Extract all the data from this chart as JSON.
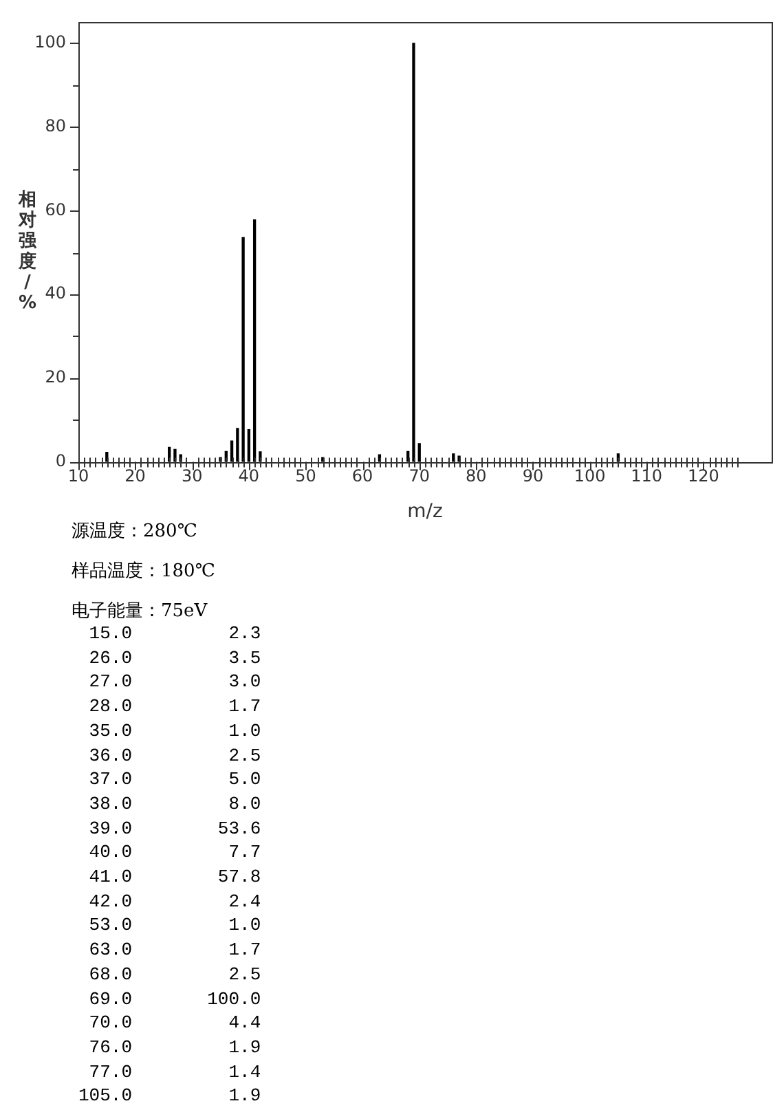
{
  "chart_data": {
    "type": "bar",
    "xlabel": "m/z",
    "ylabel": "相对强度/%",
    "x": [
      15,
      26,
      27,
      28,
      35,
      36,
      37,
      38,
      39,
      40,
      41,
      42,
      53,
      63,
      68,
      69,
      70,
      76,
      77,
      105
    ],
    "values": [
      2.3,
      3.5,
      3.0,
      1.7,
      1.0,
      2.5,
      5.0,
      8.0,
      53.6,
      7.7,
      57.8,
      2.4,
      1.0,
      1.7,
      2.5,
      100.0,
      4.4,
      1.9,
      1.4,
      1.9
    ],
    "color": "#000000",
    "xlim": [
      10,
      132
    ],
    "xticks": [
      10,
      {
        "value": 11,
        "label": null
      },
      {
        "value": 12,
        "label": null
      },
      {
        "value": 13,
        "label": null
      },
      {
        "value": 14,
        "label": null
      },
      {
        "value": 15,
        "label": null
      },
      {
        "value": 16,
        "label": null
      },
      {
        "value": 17,
        "label": null
      },
      {
        "value": 18,
        "label": null
      },
      {
        "value": 19,
        "label": null
      },
      20,
      {
        "value": 21,
        "label": null
      },
      {
        "value": 22,
        "label": null
      },
      {
        "value": 23,
        "label": null
      },
      {
        "value": 24,
        "label": null
      },
      {
        "value": 25,
        "label": null
      },
      {
        "value": 26,
        "label": null
      },
      {
        "value": 27,
        "label": null
      },
      {
        "value": 28,
        "label": null
      },
      {
        "value": 29,
        "label": null
      },
      30,
      {
        "value": 31,
        "label": null
      },
      {
        "value": 32,
        "label": null
      },
      {
        "value": 33,
        "label": null
      },
      {
        "value": 34,
        "label": null
      },
      {
        "value": 35,
        "label": null
      },
      {
        "value": 36,
        "label": null
      },
      {
        "value": 37,
        "label": null
      },
      {
        "value": 38,
        "label": null
      },
      {
        "value": 39,
        "label": null
      },
      40,
      {
        "value": 41,
        "label": null
      },
      {
        "value": 42,
        "label": null
      },
      {
        "value": 43,
        "label": null
      },
      {
        "value": 44,
        "label": null
      },
      {
        "value": 45,
        "label": null
      },
      {
        "value": 46,
        "label": null
      },
      {
        "value": 47,
        "label": null
      },
      {
        "value": 48,
        "label": null
      },
      {
        "value": 49,
        "label": null
      },
      50,
      {
        "value": 51,
        "label": null
      },
      {
        "value": 52,
        "label": null
      },
      {
        "value": 53,
        "label": null
      },
      {
        "value": 54,
        "label": null
      },
      {
        "value": 55,
        "label": null
      },
      {
        "value": 56,
        "label": null
      },
      {
        "value": 57,
        "label": null
      },
      {
        "value": 58,
        "label": null
      },
      {
        "value": 59,
        "label": null
      },
      60,
      {
        "value": 61,
        "label": null
      },
      {
        "value": 62,
        "label": null
      },
      {
        "value": 63,
        "label": null
      },
      {
        "value": 64,
        "label": null
      },
      {
        "value": 65,
        "label": null
      },
      {
        "value": 66,
        "label": null
      },
      {
        "value": 67,
        "label": null
      },
      {
        "value": 68,
        "label": null
      },
      {
        "value": 69,
        "label": null
      },
      70,
      {
        "value": 71,
        "label": null
      },
      {
        "value": 72,
        "label": null
      },
      {
        "value": 73,
        "label": null
      },
      {
        "value": 74,
        "label": null
      },
      {
        "value": 75,
        "label": null
      },
      {
        "value": 76,
        "label": null
      },
      {
        "value": 77,
        "label": null
      },
      {
        "value": 78,
        "label": null
      },
      {
        "value": 79,
        "label": null
      },
      80,
      {
        "value": 81,
        "label": null
      },
      {
        "value": 82,
        "label": null
      },
      {
        "value": 83,
        "label": null
      },
      {
        "value": 84,
        "label": null
      },
      {
        "value": 85,
        "label": null
      },
      {
        "value": 86,
        "label": null
      },
      {
        "value": 87,
        "label": null
      },
      {
        "value": 88,
        "label": null
      },
      {
        "value": 89,
        "label": null
      },
      90,
      {
        "value": 91,
        "label": null
      },
      {
        "value": 92,
        "label": null
      },
      {
        "value": 93,
        "label": null
      },
      {
        "value": 94,
        "label": null
      },
      {
        "value": 95,
        "label": null
      },
      {
        "value": 96,
        "label": null
      },
      {
        "value": 97,
        "label": null
      },
      {
        "value": 98,
        "label": null
      },
      {
        "value": 99,
        "label": null
      },
      100,
      {
        "value": 101,
        "label": null
      },
      {
        "value": 102,
        "label": null
      },
      {
        "value": 103,
        "label": null
      },
      {
        "value": 104,
        "label": null
      },
      {
        "value": 105,
        "label": null
      },
      {
        "value": 106,
        "label": null
      },
      {
        "value": 107,
        "label": null
      },
      {
        "value": 108,
        "label": null
      },
      {
        "value": 109,
        "label": null
      },
      110,
      {
        "value": 111,
        "label": null
      },
      {
        "value": 112,
        "label": null
      },
      {
        "value": 113,
        "label": null
      },
      {
        "value": 114,
        "label": null
      },
      {
        "value": 115,
        "label": null
      },
      {
        "value": 116,
        "label": null
      },
      {
        "value": 117,
        "label": null
      },
      {
        "value": 118,
        "label": null
      },
      {
        "value": 119,
        "label": null
      },
      120,
      {
        "value": 121,
        "label": null
      },
      {
        "value": 122,
        "label": null
      },
      {
        "value": 123,
        "label": null
      },
      {
        "value": 124,
        "label": null
      },
      {
        "value": 125,
        "label": null
      },
      {
        "value": 126,
        "label": null
      }
    ],
    "ylim": [
      0,
      105
    ],
    "yticks": [
      0,
      {
        "value": 10,
        "label": null
      },
      20,
      {
        "value": 30,
        "label": null
      },
      40,
      {
        "value": 50,
        "label": null
      },
      60,
      {
        "value": 70,
        "label": null
      },
      80,
      {
        "value": 90,
        "label": null
      },
      100
    ],
    "grid": false,
    "annotations": [
      "源温度：280℃",
      "样品温度：180℃",
      "电子能量：75eV",
      " 15.0         2.3",
      " 26.0         3.5",
      " 27.0         3.0",
      " 28.0         1.7",
      " 35.0         1.0",
      " 36.0         2.5",
      " 37.0         5.0",
      " 38.0         8.0",
      " 39.0        53.6",
      " 40.0         7.7",
      " 41.0        57.8",
      " 42.0         2.4",
      " 53.0         1.0",
      " 63.0         1.7",
      " 68.0         2.5",
      " 69.0       100.0",
      " 70.0         4.4",
      " 76.0         1.9",
      " 77.0         1.4",
      "105.0         1.9"
    ]
  }
}
